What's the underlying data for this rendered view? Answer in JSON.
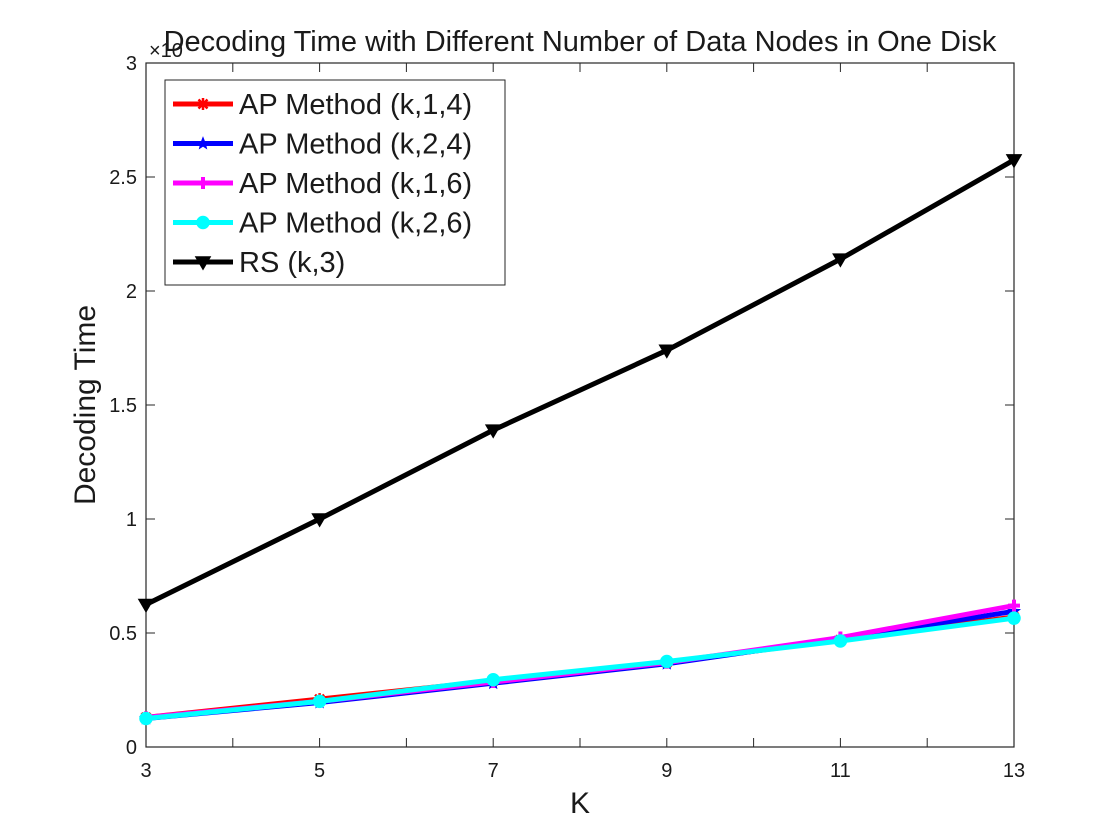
{
  "chart_data": {
    "type": "line",
    "title": "Decoding Time with Different Number of Data Nodes in One Disk",
    "xlabel": "K",
    "ylabel": "Decoding Time",
    "y_exponent_label": "×10",
    "x": [
      3,
      5,
      7,
      9,
      11,
      13
    ],
    "xlim": [
      3,
      13
    ],
    "ylim": [
      0,
      3
    ],
    "x_ticks": [
      3,
      4,
      5,
      6,
      7,
      8,
      9,
      10,
      11,
      12,
      13
    ],
    "x_tick_labels": [
      "3",
      "",
      "5",
      "",
      "7",
      "",
      "9",
      "",
      "11",
      "",
      "13"
    ],
    "y_ticks": [
      0,
      0.5,
      1,
      1.5,
      2,
      2.5,
      3
    ],
    "y_tick_labels": [
      "0",
      "0.5",
      "1",
      "1.5",
      "2",
      "2.5",
      "3"
    ],
    "grid": false,
    "legend_position": "top-left",
    "series": [
      {
        "name": "AP Method (k,1,4)",
        "color": "#ff0000",
        "marker": "asterisk",
        "values": [
          0.13,
          0.21,
          0.29,
          0.37,
          0.47,
          0.57
        ]
      },
      {
        "name": "AP Method (k,2,4)",
        "color": "#0000ff",
        "marker": "star",
        "values": [
          0.125,
          0.195,
          0.28,
          0.365,
          0.475,
          0.595
        ]
      },
      {
        "name": "AP Method (k,1,6)",
        "color": "#ff00ff",
        "marker": "plus",
        "values": [
          0.13,
          0.2,
          0.285,
          0.37,
          0.48,
          0.62
        ]
      },
      {
        "name": "AP Method (k,2,6)",
        "color": "#00ffff",
        "marker": "circle",
        "values": [
          0.125,
          0.2,
          0.295,
          0.375,
          0.465,
          0.565
        ]
      },
      {
        "name": "RS (k,3)",
        "color": "#000000",
        "marker": "triangle-down",
        "values": [
          0.625,
          1.0,
          1.39,
          1.74,
          2.14,
          2.575
        ]
      }
    ]
  }
}
